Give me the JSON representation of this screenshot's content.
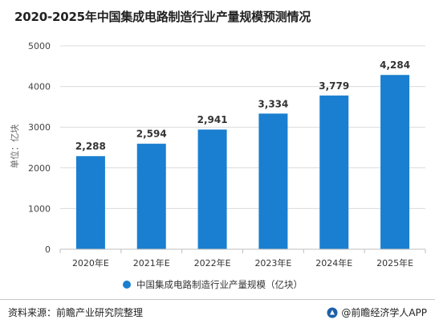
{
  "chart_data": {
    "type": "bar",
    "title": "2020-2025年中国集成电路制造行业产量规模预测情况",
    "ylabel": "单位：亿块",
    "xlabel": "",
    "categories": [
      "2020年E",
      "2021年E",
      "2022年E",
      "2023年E",
      "2024年E",
      "2025年E"
    ],
    "series": [
      {
        "name": "中国集成电路制造行业产量规模（亿块）",
        "values": [
          2288,
          2594,
          2941,
          3334,
          3779,
          4284
        ]
      }
    ],
    "data_labels": [
      "2,288",
      "2,594",
      "2,941",
      "3,334",
      "3,779",
      "4,284"
    ],
    "ylim": [
      0,
      5000
    ],
    "yticks": [
      0,
      1000,
      2000,
      3000,
      4000,
      5000
    ],
    "grid": true,
    "legend_position": "bottom-center",
    "bar_color": "#1a7fd0"
  },
  "footer": {
    "source": "资料来源：前瞻产业研究院整理",
    "brand": "@前瞻经济学人APP"
  }
}
